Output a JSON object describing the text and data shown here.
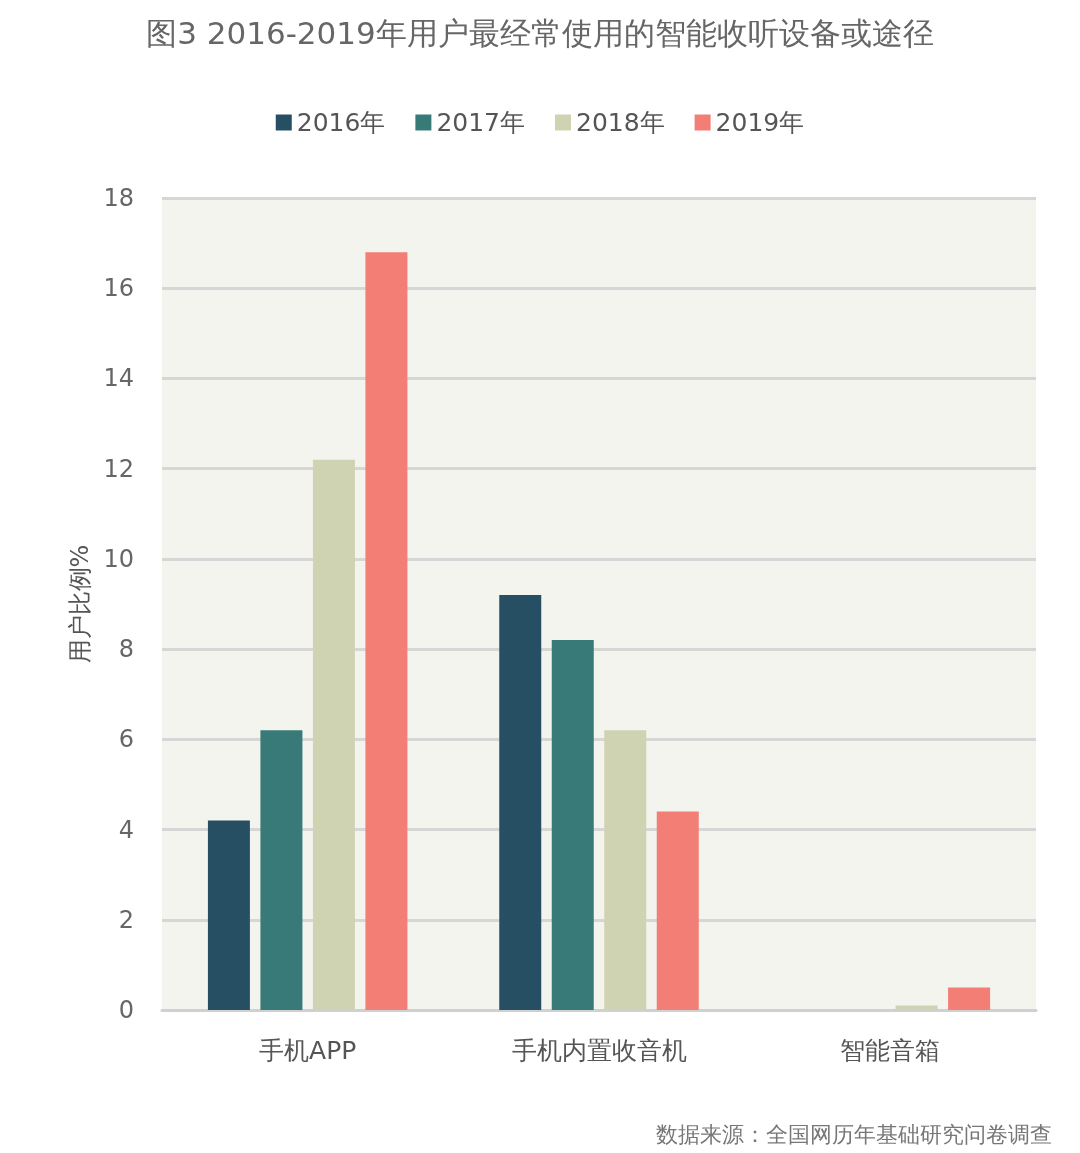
{
  "chart_data": {
    "type": "bar",
    "title": "图3 2016-2019年用户最经常使用的智能收听设备或途径",
    "categories": [
      "手机APP",
      "手机内置收音机",
      "智能音箱"
    ],
    "series": [
      {
        "name": "2016年",
        "color": "#264f63",
        "values": [
          4.2,
          9.2,
          0
        ]
      },
      {
        "name": "2017年",
        "color": "#377a78",
        "values": [
          6.2,
          8.2,
          0
        ]
      },
      {
        "name": "2018年",
        "color": "#cfd3b2",
        "values": [
          12.2,
          6.2,
          0.1
        ]
      },
      {
        "name": "2019年",
        "color": "#f27e76",
        "values": [
          16.8,
          4.4,
          0.5
        ]
      }
    ],
    "ylabel": "用户比例%",
    "ylim": [
      0,
      18
    ],
    "yticks": [
      0,
      2,
      4,
      6,
      8,
      10,
      12,
      14,
      16,
      18
    ],
    "grid": "y",
    "legend": "top",
    "annotations": [
      "数据来源：全国网历年基础研究问卷调查"
    ]
  }
}
